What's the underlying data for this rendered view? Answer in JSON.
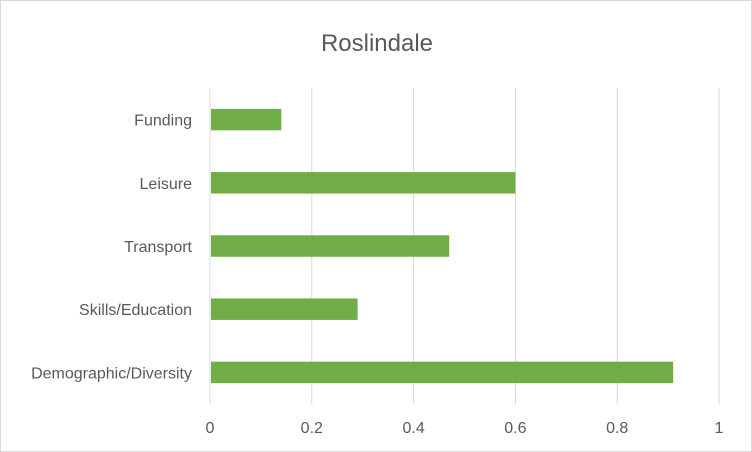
{
  "chart_data": {
    "type": "bar",
    "orientation": "horizontal",
    "title": "Roslindale",
    "xlabel": "",
    "ylabel": "",
    "categories": [
      "Demographic/Diversity",
      "Skills/Education",
      "Transport",
      "Leisure",
      "Funding"
    ],
    "values": [
      0.91,
      0.29,
      0.47,
      0.6,
      0.14
    ],
    "xlim": [
      0,
      1
    ],
    "x_ticks": [
      "0",
      "0.2",
      "0.4",
      "0.6",
      "0.8",
      "1"
    ],
    "grid": true,
    "legend": "none",
    "bar_color": "#70ad47"
  }
}
